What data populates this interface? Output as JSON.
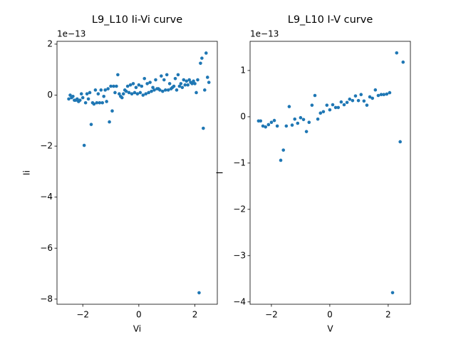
{
  "chart_data": [
    {
      "type": "scatter",
      "title": "L9_L10 Ii-Vi curve",
      "x_label": "Vi",
      "y_label": "Ii",
      "y_offset_label": "1e−13",
      "color": "#1f77b4",
      "xlim": [
        -2.92,
        2.8
      ],
      "ylim": [
        -8.2,
        2.11
      ],
      "xticks": [
        {
          "value": -2,
          "label": "−2"
        },
        0,
        2
      ],
      "yticks": [
        {
          "value": -8,
          "label": "−8"
        },
        {
          "value": -6,
          "label": "−6"
        },
        {
          "value": -4,
          "label": "−4"
        },
        {
          "value": -2,
          "label": "−2"
        },
        0,
        2
      ],
      "x": [
        -2.5,
        -2.45,
        -2.4,
        -2.35,
        -2.3,
        -2.25,
        -2.2,
        -2.15,
        -2.1,
        -2.05,
        -2.0,
        -1.95,
        -1.9,
        -1.85,
        -1.8,
        -1.75,
        -1.7,
        -1.65,
        -1.6,
        -1.55,
        -1.5,
        -1.45,
        -1.4,
        -1.35,
        -1.3,
        -1.25,
        -1.2,
        -1.15,
        -1.1,
        -1.05,
        -1.0,
        -0.95,
        -0.9,
        -0.85,
        -0.8,
        -0.75,
        -0.7,
        -0.65,
        -0.6,
        -0.55,
        -0.5,
        -0.45,
        -0.4,
        -0.35,
        -0.3,
        -0.25,
        -0.2,
        -0.15,
        -0.1,
        -0.05,
        0.0,
        0.05,
        0.1,
        0.15,
        0.2,
        0.25,
        0.3,
        0.35,
        0.4,
        0.45,
        0.5,
        0.55,
        0.6,
        0.65,
        0.7,
        0.75,
        0.8,
        0.85,
        0.9,
        0.95,
        1.0,
        1.05,
        1.1,
        1.15,
        1.2,
        1.25,
        1.3,
        1.35,
        1.4,
        1.45,
        1.5,
        1.55,
        1.6,
        1.65,
        1.7,
        1.75,
        1.8,
        1.85,
        1.9,
        1.95,
        2.0,
        2.05,
        2.1,
        2.15,
        2.2,
        2.25,
        2.3,
        2.35,
        2.4,
        2.45,
        2.5
      ],
      "values": [
        -0.15,
        0.0,
        -0.1,
        -0.05,
        -0.2,
        -0.2,
        -0.15,
        -0.25,
        -0.2,
        0.05,
        -0.1,
        -1.97,
        -0.3,
        0.05,
        -0.15,
        0.1,
        -1.15,
        -0.3,
        -0.35,
        0.2,
        -0.3,
        0.05,
        -0.3,
        0.2,
        -0.3,
        -0.05,
        0.2,
        -0.25,
        0.25,
        -1.05,
        0.35,
        -0.62,
        0.35,
        0.1,
        0.35,
        0.8,
        0.05,
        -0.05,
        -0.1,
        0.05,
        0.2,
        0.15,
        0.35,
        0.1,
        0.4,
        0.05,
        0.45,
        0.1,
        0.3,
        0.05,
        0.4,
        0.1,
        0.35,
        0.0,
        0.65,
        0.05,
        0.45,
        0.1,
        0.5,
        0.15,
        0.3,
        0.2,
        0.6,
        0.25,
        0.25,
        0.2,
        0.75,
        0.15,
        0.6,
        0.2,
        0.8,
        0.2,
        0.45,
        0.25,
        0.3,
        0.35,
        0.65,
        0.2,
        0.8,
        0.35,
        0.45,
        0.3,
        0.6,
        0.4,
        0.55,
        0.4,
        0.6,
        0.5,
        0.45,
        0.55,
        0.45,
        0.1,
        0.6,
        -7.75,
        1.25,
        1.45,
        -1.3,
        0.2,
        1.65,
        0.7,
        0.5
      ]
    },
    {
      "type": "scatter",
      "title": "L9_L10 I-V curve",
      "x_label": "V",
      "y_label": "I",
      "y_offset_label": "1e−13",
      "color": "#1f77b4",
      "xlim": [
        -2.73,
        2.76
      ],
      "ylim": [
        -4.05,
        1.63
      ],
      "xticks": [
        {
          "value": -2,
          "label": "−2"
        },
        0,
        2
      ],
      "yticks": [
        {
          "value": -4,
          "label": "−4"
        },
        {
          "value": -3,
          "label": "−3"
        },
        {
          "value": -2,
          "label": "−2"
        },
        {
          "value": -1,
          "label": "−1"
        },
        0,
        1
      ],
      "x": [
        -2.44,
        -2.37,
        -2.29,
        -2.2,
        -2.1,
        -2.0,
        -1.9,
        -1.8,
        -1.68,
        -1.59,
        -1.49,
        -1.39,
        -1.29,
        -1.2,
        -1.1,
        -1.0,
        -0.9,
        -0.8,
        -0.71,
        -0.61,
        -0.51,
        -0.41,
        -0.32,
        -0.22,
        -0.1,
        0.0,
        0.1,
        0.2,
        0.29,
        0.39,
        0.49,
        0.59,
        0.68,
        0.78,
        0.88,
        0.98,
        1.07,
        1.17,
        1.27,
        1.37,
        1.46,
        1.56,
        1.66,
        1.76,
        1.85,
        1.95,
        2.05,
        2.15,
        2.29,
        2.41,
        2.51
      ],
      "values": [
        -0.09,
        -0.09,
        -0.2,
        -0.22,
        -0.17,
        -0.12,
        -0.08,
        -0.2,
        -0.94,
        -0.72,
        -0.2,
        0.22,
        -0.18,
        -0.05,
        -0.14,
        -0.02,
        -0.06,
        -0.32,
        -0.12,
        0.25,
        0.46,
        -0.05,
        0.08,
        0.11,
        0.25,
        0.15,
        0.26,
        0.2,
        0.2,
        0.32,
        0.26,
        0.31,
        0.38,
        0.35,
        0.45,
        0.35,
        0.48,
        0.34,
        0.25,
        0.43,
        0.4,
        0.58,
        0.46,
        0.48,
        0.48,
        0.49,
        0.52,
        -3.8,
        1.38,
        -0.54,
        1.18
      ]
    }
  ]
}
